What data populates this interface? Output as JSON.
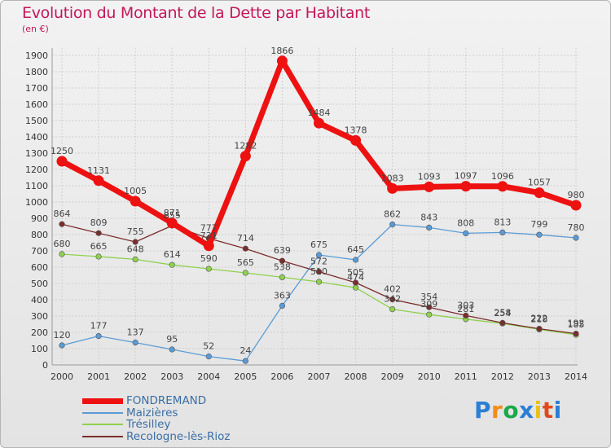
{
  "header": {
    "title": "Evolution du Montant de la Dette par Habitant",
    "unit": "(en €)"
  },
  "colors": {
    "title": "#c2185b",
    "axis_text": "#333333",
    "grid": "#cfcfcf"
  },
  "chart_data": {
    "type": "line",
    "title": "Evolution du Montant de la Dette par Habitant",
    "subtitle": "(en €)",
    "xlabel": "",
    "ylabel": "",
    "ylim": [
      0,
      1900
    ],
    "yticks": [
      0,
      100,
      200,
      300,
      400,
      500,
      600,
      700,
      800,
      900,
      1000,
      1100,
      1200,
      1300,
      1400,
      1500,
      1600,
      1700,
      1800,
      1900
    ],
    "x": [
      "2000",
      "2001",
      "2002",
      "2003",
      "2004",
      "2005",
      "2006",
      "2007",
      "2008",
      "2009",
      "2010",
      "2011",
      "2012",
      "2013",
      "2014"
    ],
    "grid": true,
    "legend_position": "bottom-left",
    "series": [
      {
        "name": "FONDREMAND",
        "color": "#ee1111",
        "values": [
          1250,
          1131,
          1005,
          871,
          731,
          1282,
          1866,
          1484,
          1378,
          1083,
          1093,
          1097,
          1096,
          1057,
          980
        ],
        "labels": [
          "1250",
          "1131",
          "1005",
          "871",
          "731",
          "1282",
          "1866",
          "1484",
          "1378",
          "1083",
          "1093",
          "1097",
          "1096",
          "1057",
          "980"
        ]
      },
      {
        "name": "Maizières",
        "color": "#5b9bd5",
        "values": [
          120,
          177,
          137,
          95,
          52,
          24,
          363,
          675,
          645,
          862,
          843,
          808,
          813,
          799,
          780
        ],
        "labels": [
          "120",
          "177",
          "137",
          "95",
          "52",
          "24",
          "363",
          "675",
          "645",
          "862",
          "843",
          "808",
          "813",
          "799",
          "780"
        ]
      },
      {
        "name": "Trésilley",
        "color": "#8fd14f",
        "values": [
          680,
          665,
          648,
          614,
          590,
          565,
          538,
          510,
          474,
          342,
          309,
          281,
          254,
          218,
          185
        ],
        "labels": [
          "680",
          "665",
          "648",
          "614",
          "590",
          "565",
          "538",
          "510",
          "474",
          "342",
          "309",
          "281",
          "254",
          "218",
          "185"
        ]
      },
      {
        "name": "Recologne-lès-Rioz",
        "color": "#7b2d2d",
        "values": [
          864,
          809,
          755,
          855,
          777,
          714,
          639,
          572,
          505,
          402,
          354,
          303,
          258,
          222,
          192
        ],
        "labels": [
          "864",
          "809",
          "755",
          "855",
          "777",
          "714",
          "639",
          "572",
          "505",
          "402",
          "354",
          "303",
          "258",
          "222",
          "192"
        ]
      }
    ]
  },
  "legend": [
    {
      "name": "FONDREMAND"
    },
    {
      "name": "Maizières"
    },
    {
      "name": "Trésilley"
    },
    {
      "name": "Recologne-lès-Rioz"
    }
  ],
  "brand": {
    "letters": [
      "P",
      "r",
      "o",
      "x",
      "i",
      "t",
      "i"
    ],
    "colors": [
      "#2a7fd4",
      "#f28c1a",
      "#1aa84a",
      "#2a7fd4",
      "#e8c21a",
      "#e04a1a",
      "#2a7fd4"
    ]
  }
}
